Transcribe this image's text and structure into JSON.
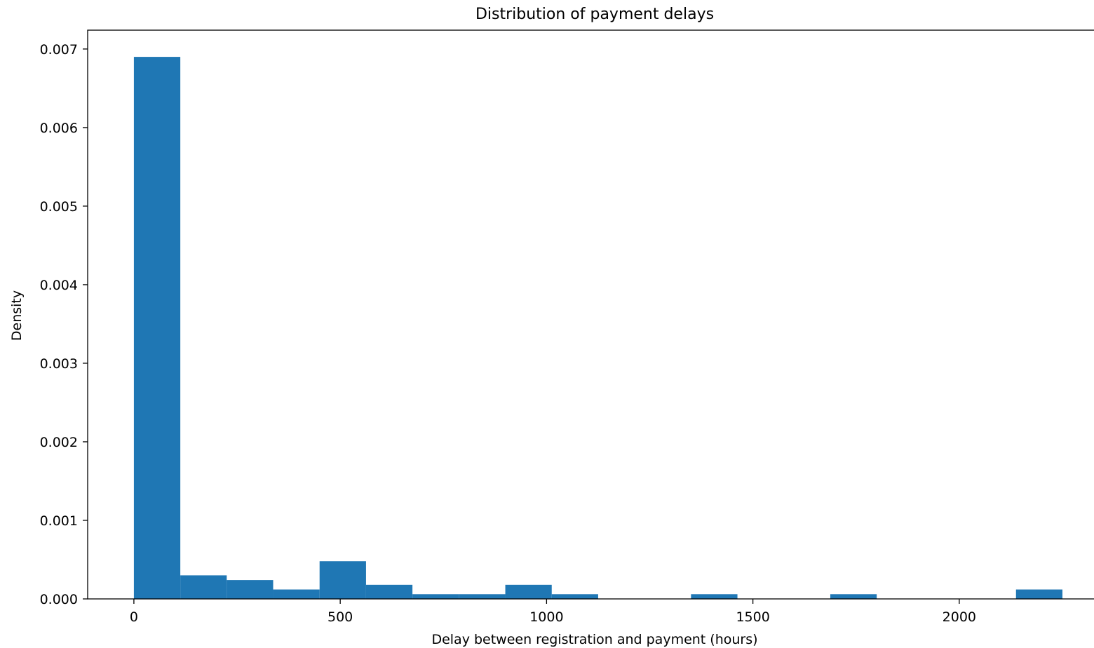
{
  "chart_data": {
    "type": "bar",
    "title": "Distribution of payment delays",
    "xlabel": "Delay between registration and payment (hours)",
    "ylabel": "Density",
    "xlim": [
      -112,
      2335
    ],
    "ylim": [
      0,
      0.00724
    ],
    "xticks": [
      {
        "value": 0,
        "label": "0"
      },
      {
        "value": 500,
        "label": "500"
      },
      {
        "value": 1000,
        "label": "1000"
      },
      {
        "value": 1500,
        "label": "1500"
      },
      {
        "value": 2000,
        "label": "2000"
      }
    ],
    "yticks": [
      {
        "value": 0.0,
        "label": "0.000"
      },
      {
        "value": 0.001,
        "label": "0.001"
      },
      {
        "value": 0.002,
        "label": "0.002"
      },
      {
        "value": 0.003,
        "label": "0.003"
      },
      {
        "value": 0.004,
        "label": "0.004"
      },
      {
        "value": 0.005,
        "label": "0.005"
      },
      {
        "value": 0.006,
        "label": "0.006"
      },
      {
        "value": 0.007,
        "label": "0.007"
      }
    ],
    "bin_edges": [
      0,
      112.5,
      225,
      337.5,
      450,
      562.5,
      675,
      787.5,
      900,
      1012.5,
      1125,
      1237.5,
      1350,
      1462.5,
      1575,
      1687.5,
      1800,
      1912.5,
      2025,
      2137.5,
      2250
    ],
    "values": [
      0.0069,
      0.0003,
      0.00024,
      0.00012,
      0.00048,
      0.00018,
      6e-05,
      6e-05,
      0.00018,
      6e-05,
      0,
      0,
      6e-05,
      0,
      0,
      6e-05,
      0,
      0,
      0,
      0.00012
    ],
    "bar_color": "#1f77b4",
    "grid": false
  }
}
